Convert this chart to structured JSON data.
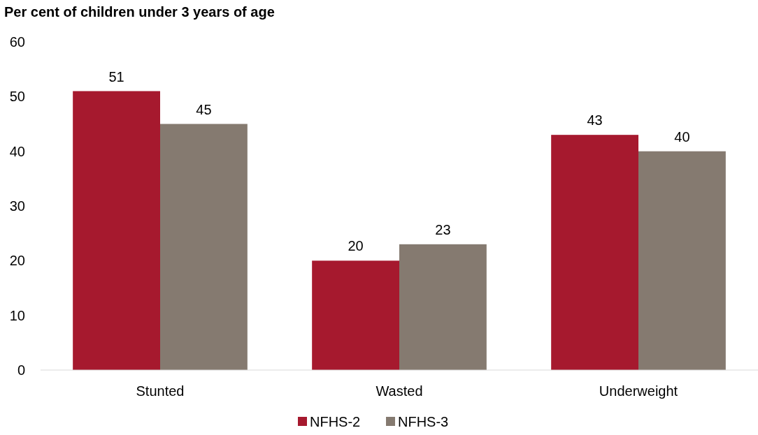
{
  "chart_data": {
    "type": "bar",
    "title": "Per cent of children under 3 years of age",
    "categories": [
      "Stunted",
      "Wasted",
      "Underweight"
    ],
    "series": [
      {
        "name": "NFHS-2",
        "color": "#a6192e",
        "values": [
          51,
          20,
          43
        ]
      },
      {
        "name": "NFHS-3",
        "color": "#857a70",
        "values": [
          45,
          23,
          40
        ]
      }
    ],
    "ylim": [
      0,
      60
    ],
    "yticks": [
      0,
      10,
      20,
      30,
      40,
      50,
      60
    ],
    "grid": false,
    "legend": "bottom",
    "data_labels": true
  }
}
